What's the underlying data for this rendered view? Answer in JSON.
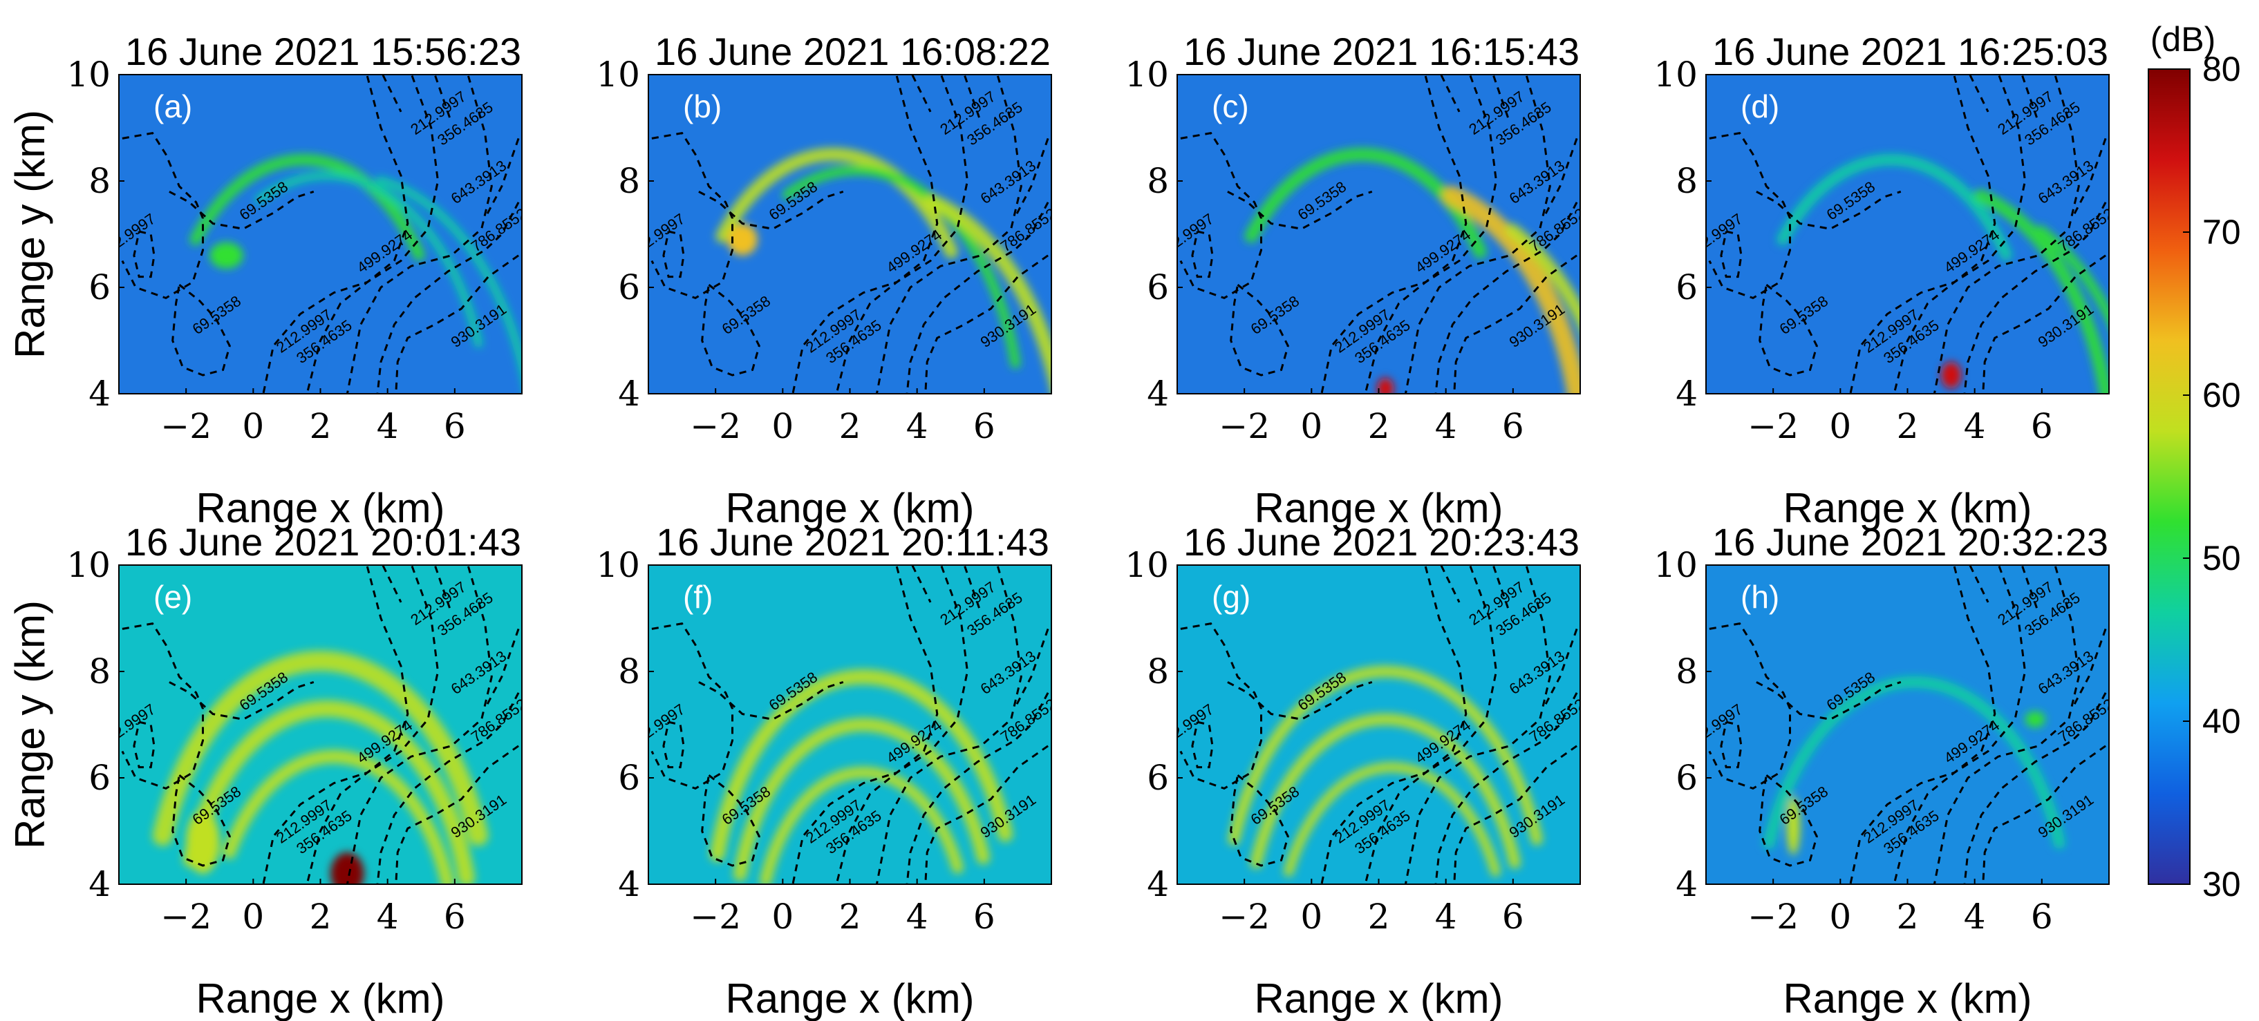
{
  "chart_data": {
    "type": "heatmap",
    "xlabel": "Range x (km)",
    "ylabel": "Range y (km)",
    "xlim": [
      -4,
      8
    ],
    "ylim": [
      4,
      10
    ],
    "xticks": [
      "−2",
      "0",
      "2",
      "4",
      "6"
    ],
    "xtick_values": [
      -2,
      0,
      2,
      4,
      6
    ],
    "yticks": [
      "4",
      "6",
      "8",
      "10"
    ],
    "ytick_values": [
      4,
      6,
      8,
      10
    ],
    "colorbar": {
      "unit": "(dB)",
      "range": [
        30,
        80
      ],
      "ticks": [
        "30",
        "40",
        "50",
        "60",
        "70",
        "80"
      ],
      "tick_values": [
        30,
        40,
        50,
        60,
        70,
        80
      ],
      "colormap": [
        "#3030a0",
        "#1060e0",
        "#10a0f0",
        "#10d0a0",
        "#30e030",
        "#c0e020",
        "#f0c020",
        "#f06010",
        "#d01010",
        "#800000"
      ]
    },
    "contours": [
      {
        "label": "212.9997",
        "points": [
          [
            -3.9,
            8.8
          ],
          [
            -3,
            8.9
          ],
          [
            -2.6,
            8.5
          ],
          [
            -2.2,
            7.9
          ],
          [
            -1.7,
            7.6
          ],
          [
            -1.5,
            7.3
          ],
          [
            -1.5,
            6.7
          ],
          [
            -1.8,
            6.1
          ],
          [
            -2.6,
            5.8
          ],
          [
            -3.5,
            6.0
          ],
          [
            -3.9,
            6.5
          ]
        ],
        "label_at": [
          -3.65,
          6.9
        ]
      },
      {
        "label": "69.5358",
        "points": [
          [
            -3.4,
            7.05
          ],
          [
            -3.05,
            7.0
          ],
          [
            -2.95,
            6.6
          ],
          [
            -3.05,
            6.2
          ],
          [
            -3.4,
            6.2
          ],
          [
            -3.55,
            6.6
          ],
          [
            -3.4,
            7.05
          ]
        ],
        "label_at": null
      },
      {
        "label": "69.5358",
        "points": [
          [
            -2.5,
            7.8
          ],
          [
            -1.9,
            7.6
          ],
          [
            -1.2,
            7.2
          ],
          [
            -0.3,
            7.1
          ],
          [
            0.6,
            7.4
          ],
          [
            1.3,
            7.7
          ],
          [
            1.8,
            7.8
          ]
        ],
        "label_at": [
          0.4,
          7.55
        ]
      },
      {
        "label": "69.5358",
        "points": [
          [
            -2.2,
            6.05
          ],
          [
            -1.6,
            5.75
          ],
          [
            -1.1,
            5.4
          ],
          [
            -0.7,
            4.9
          ],
          [
            -0.9,
            4.45
          ],
          [
            -1.5,
            4.35
          ],
          [
            -2.1,
            4.5
          ],
          [
            -2.4,
            5.0
          ],
          [
            -2.3,
            5.7
          ],
          [
            -2.2,
            6.05
          ]
        ],
        "label_at": [
          -1.0,
          5.4
        ]
      },
      {
        "label": "212.9997",
        "points": [
          [
            3.3,
            10.2
          ],
          [
            3.8,
            9.0
          ],
          [
            4.4,
            8.1
          ],
          [
            4.6,
            7.2
          ],
          [
            4.2,
            6.5
          ],
          [
            3.4,
            6.1
          ],
          [
            2.4,
            5.9
          ],
          [
            1.4,
            5.5
          ],
          [
            0.6,
            4.9
          ],
          [
            0.3,
            4.0
          ]
        ],
        "label_at": [
          1.6,
          5.1
        ]
      },
      {
        "label": "212.9997",
        "points": [
          [
            3.7,
            10.2
          ],
          [
            4.4,
            9.3
          ]
        ],
        "label_at": [
          5.6,
          9.2
        ]
      },
      {
        "label": "356.4635",
        "points": [
          [
            4.6,
            10.2
          ],
          [
            5.3,
            9.0
          ],
          [
            5.5,
            8.0
          ],
          [
            5.2,
            7.1
          ],
          [
            4.4,
            6.5
          ],
          [
            3.4,
            6.1
          ],
          [
            2.6,
            5.7
          ],
          [
            2.0,
            5.0
          ],
          [
            1.6,
            4.0
          ]
        ],
        "label_at": [
          2.2,
          4.9
        ]
      },
      {
        "label": "356.4635",
        "points": [
          [
            5.3,
            10.2
          ],
          [
            5.9,
            9.1
          ]
        ],
        "label_at": [
          6.4,
          9.0
        ]
      },
      {
        "label": "499.9274",
        "points": [
          [
            6.3,
            10.2
          ],
          [
            6.9,
            8.9
          ],
          [
            7.1,
            7.9
          ],
          [
            6.8,
            7.1
          ],
          [
            5.9,
            6.6
          ],
          [
            4.7,
            6.4
          ],
          [
            3.8,
            6.0
          ],
          [
            3.2,
            5.3
          ],
          [
            2.8,
            4.0
          ]
        ],
        "label_at": [
          4.0,
          6.6
        ]
      },
      {
        "label": "643.3913",
        "points": [
          [
            7.9,
            8.8
          ],
          [
            7.4,
            7.9
          ],
          [
            6.9,
            7.3
          ]
        ],
        "label_at": [
          6.8,
          7.9
        ]
      },
      {
        "label": "786.8552",
        "points": [
          [
            7.9,
            7.6
          ],
          [
            7.4,
            7.0
          ],
          [
            6.9,
            6.7
          ],
          [
            5.8,
            6.3
          ],
          [
            4.8,
            5.8
          ],
          [
            4.2,
            5.3
          ],
          [
            3.8,
            4.6
          ],
          [
            3.7,
            4.0
          ]
        ],
        "label_at": [
          7.4,
          7.0
        ]
      },
      {
        "label": "930.3191",
        "points": [
          [
            7.9,
            6.6
          ],
          [
            7.0,
            6.2
          ],
          [
            6.2,
            5.6
          ],
          [
            5.4,
            5.3
          ],
          [
            4.6,
            5.05
          ],
          [
            4.3,
            4.6
          ],
          [
            4.25,
            4.0
          ]
        ],
        "label_at": [
          6.8,
          5.2
        ]
      }
    ],
    "panels": [
      {
        "letter": "(a)",
        "title": "16 June 2021 15:56:23",
        "background": "#1f78e0",
        "features": [
          {
            "kind": "arc",
            "cx": 1.5,
            "cy": 4.2,
            "r": 4.2,
            "a0": 35,
            "a1": 140,
            "width": 0.35,
            "intensity": 50
          },
          {
            "kind": "arc",
            "cx": 2.2,
            "cy": 3.3,
            "r": 4.8,
            "a0": 20,
            "a1": 115,
            "width": 0.25,
            "intensity": 46
          },
          {
            "kind": "arc",
            "cx": 2.8,
            "cy": 2.5,
            "r": 5.6,
            "a0": 10,
            "a1": 80,
            "width": 0.25,
            "intensity": 45
          },
          {
            "kind": "blob",
            "x": -0.8,
            "y": 6.6,
            "rx": 0.5,
            "ry": 0.25,
            "intensity": 52
          }
        ]
      },
      {
        "letter": "(b)",
        "title": "16 June 2021 16:08:22",
        "background": "#1f78e0",
        "features": [
          {
            "kind": "arc",
            "cx": 1.5,
            "cy": 4.2,
            "r": 4.3,
            "a0": 35,
            "a1": 140,
            "width": 0.4,
            "intensity": 55
          },
          {
            "kind": "arc",
            "cx": 2.2,
            "cy": 3.3,
            "r": 4.9,
            "a0": 15,
            "a1": 115,
            "width": 0.3,
            "intensity": 52
          },
          {
            "kind": "arc",
            "cx": 3.0,
            "cy": 2.3,
            "r": 5.5,
            "a0": 5,
            "a1": 75,
            "width": 0.45,
            "intensity": 57
          },
          {
            "kind": "blob",
            "x": -1.2,
            "y": 6.9,
            "rx": 0.45,
            "ry": 0.3,
            "intensity": 63
          }
        ]
      },
      {
        "letter": "(c)",
        "title": "16 June 2021 16:15:43",
        "background": "#1f78e0",
        "features": [
          {
            "kind": "arc",
            "cx": 1.5,
            "cy": 4.2,
            "r": 4.3,
            "a0": 35,
            "a1": 140,
            "width": 0.4,
            "intensity": 54
          },
          {
            "kind": "arc",
            "cx": 2.8,
            "cy": 2.6,
            "r": 5.3,
            "a0": 0,
            "a1": 75,
            "width": 0.6,
            "intensity": 62
          },
          {
            "kind": "arc",
            "cx": 3.6,
            "cy": 2.0,
            "r": 5.6,
            "a0": 0,
            "a1": 65,
            "width": 0.4,
            "intensity": 58
          },
          {
            "kind": "blob",
            "x": 2.2,
            "y": 4.1,
            "rx": 0.25,
            "ry": 0.2,
            "intensity": 72
          }
        ]
      },
      {
        "letter": "(d)",
        "title": "16 June 2021 16:25:03",
        "background": "#1f78e0",
        "features": [
          {
            "kind": "arc",
            "cx": 1.5,
            "cy": 4.2,
            "r": 4.2,
            "a0": 35,
            "a1": 140,
            "width": 0.35,
            "intensity": 48
          },
          {
            "kind": "arc",
            "cx": 2.8,
            "cy": 2.6,
            "r": 5.3,
            "a0": 5,
            "a1": 75,
            "width": 0.4,
            "intensity": 52
          },
          {
            "kind": "arc",
            "cx": 3.6,
            "cy": 2.0,
            "r": 5.6,
            "a0": 5,
            "a1": 65,
            "width": 0.3,
            "intensity": 50
          },
          {
            "kind": "blob",
            "x": 3.3,
            "y": 4.35,
            "rx": 0.3,
            "ry": 0.25,
            "intensity": 75
          }
        ]
      },
      {
        "letter": "(e)",
        "title": "16 June 2021 20:01:43",
        "background": "#10c0c8",
        "features": [
          {
            "kind": "arc",
            "cx": 2.0,
            "cy": 3.2,
            "r": 5.0,
            "a0": 20,
            "a1": 160,
            "width": 0.6,
            "intensity": 60
          },
          {
            "kind": "arc",
            "cx": 2.2,
            "cy": 3.0,
            "r": 4.3,
            "a0": 15,
            "a1": 160,
            "width": 0.5,
            "intensity": 58
          },
          {
            "kind": "arc",
            "cx": 2.4,
            "cy": 2.8,
            "r": 3.6,
            "a0": 20,
            "a1": 150,
            "width": 0.4,
            "intensity": 56
          },
          {
            "kind": "blob",
            "x": 2.8,
            "y": 4.2,
            "rx": 0.5,
            "ry": 0.4,
            "intensity": 80
          },
          {
            "kind": "blob",
            "x": -1.5,
            "y": 4.8,
            "rx": 0.5,
            "ry": 0.6,
            "intensity": 56
          }
        ]
      },
      {
        "letter": "(f)",
        "title": "16 June 2021 20:11:43",
        "background": "#10b8d0",
        "features": [
          {
            "kind": "arc",
            "cx": 2.4,
            "cy": 3.4,
            "r": 4.5,
            "a0": 20,
            "a1": 165,
            "width": 0.45,
            "intensity": 60
          },
          {
            "kind": "arc",
            "cx": 2.4,
            "cy": 3.2,
            "r": 3.8,
            "a0": 20,
            "a1": 165,
            "width": 0.4,
            "intensity": 58
          },
          {
            "kind": "arc",
            "cx": 2.4,
            "cy": 3.0,
            "r": 3.1,
            "a0": 25,
            "a1": 160,
            "width": 0.35,
            "intensity": 56
          }
        ]
      },
      {
        "letter": "(g)",
        "title": "16 June 2021 20:23:43",
        "background": "#10b0d8",
        "features": [
          {
            "kind": "arc",
            "cx": 2.2,
            "cy": 3.2,
            "r": 4.8,
            "a0": 20,
            "a1": 160,
            "width": 0.35,
            "intensity": 55
          },
          {
            "kind": "arc",
            "cx": 2.2,
            "cy": 3.0,
            "r": 4.1,
            "a0": 20,
            "a1": 160,
            "width": 0.35,
            "intensity": 57
          },
          {
            "kind": "arc",
            "cx": 2.4,
            "cy": 2.8,
            "r": 3.4,
            "a0": 25,
            "a1": 155,
            "width": 0.3,
            "intensity": 55
          }
        ]
      },
      {
        "letter": "(h)",
        "title": "16 June 2021 20:32:23",
        "background": "#1a8ce0",
        "features": [
          {
            "kind": "arc",
            "cx": 2.2,
            "cy": 3.2,
            "r": 4.6,
            "a0": 20,
            "a1": 160,
            "width": 0.35,
            "intensity": 46
          },
          {
            "kind": "blob",
            "x": -1.4,
            "y": 5.1,
            "rx": 0.2,
            "ry": 0.55,
            "intensity": 56
          },
          {
            "kind": "blob",
            "x": 5.8,
            "y": 7.1,
            "rx": 0.3,
            "ry": 0.15,
            "intensity": 52
          }
        ]
      }
    ]
  }
}
